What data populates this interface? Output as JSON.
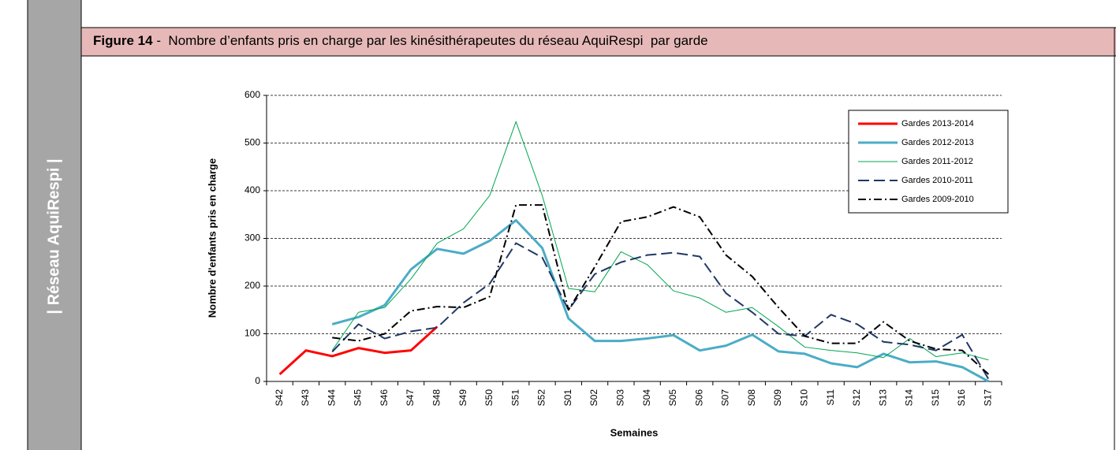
{
  "sidebar": {
    "text": "| Réseau AquiRespi |"
  },
  "header": {
    "label": "Figure 14",
    "title": " -  Nombre d’enfants pris en charge par les kinésithérapeutes du réseau AquiRespi  par garde"
  },
  "chart_data": {
    "type": "line",
    "ylabel": "Nombre d'enfants  pris en charge",
    "xlabel": "Semaines",
    "categories": [
      "S42",
      "S43",
      "S44",
      "S45",
      "S46",
      "S47",
      "S48",
      "S49",
      "S50",
      "S51",
      "S52",
      "S01",
      "S02",
      "S03",
      "S04",
      "S05",
      "S06",
      "S07",
      "S08",
      "S09",
      "S10",
      "S11",
      "S12",
      "S13",
      "S14",
      "S15",
      "S16",
      "S17"
    ],
    "ylim": [
      0,
      600
    ],
    "yticks": [
      0,
      100,
      200,
      300,
      400,
      500,
      600
    ],
    "grid": true,
    "legend": "upper right",
    "series": [
      {
        "name": "Gardes 2013-2014",
        "color": "#ff0000",
        "width": 3,
        "dash": "solid",
        "values": [
          15,
          65,
          53,
          70,
          60,
          65,
          115,
          null,
          null,
          null,
          null,
          null,
          null,
          null,
          null,
          null,
          null,
          null,
          null,
          null,
          null,
          null,
          null,
          null,
          null,
          null,
          null,
          null
        ]
      },
      {
        "name": "Gardes 2012-2013",
        "color": "#4bacc6",
        "width": 3,
        "dash": "solid",
        "values": [
          null,
          null,
          120,
          135,
          160,
          235,
          278,
          268,
          295,
          338,
          280,
          132,
          85,
          85,
          90,
          97,
          65,
          75,
          98,
          63,
          58,
          38,
          30,
          58,
          40,
          42,
          30,
          0
        ]
      },
      {
        "name": "Gardes 2011-2012",
        "color": "#00a650",
        "width": 1,
        "dash": "solid",
        "values": [
          null,
          null,
          65,
          145,
          155,
          215,
          290,
          320,
          390,
          545,
          390,
          195,
          188,
          272,
          245,
          190,
          175,
          145,
          155,
          115,
          72,
          65,
          60,
          50,
          90,
          52,
          60,
          45
        ]
      },
      {
        "name": "Gardes 2010-2011",
        "color": "#1f3864",
        "width": 2,
        "dash": "dash",
        "values": [
          null,
          null,
          62,
          120,
          90,
          105,
          113,
          165,
          205,
          290,
          260,
          150,
          225,
          250,
          265,
          270,
          262,
          185,
          145,
          100,
          95,
          140,
          120,
          83,
          77,
          65,
          98,
          5
        ]
      },
      {
        "name": "Gardes 2009-2010",
        "color": "#000000",
        "width": 2,
        "dash": "dashdot",
        "values": [
          null,
          null,
          92,
          85,
          100,
          148,
          157,
          155,
          178,
          370,
          370,
          150,
          240,
          335,
          345,
          366,
          345,
          265,
          220,
          155,
          95,
          80,
          80,
          125,
          85,
          68,
          65,
          15
        ]
      }
    ]
  }
}
